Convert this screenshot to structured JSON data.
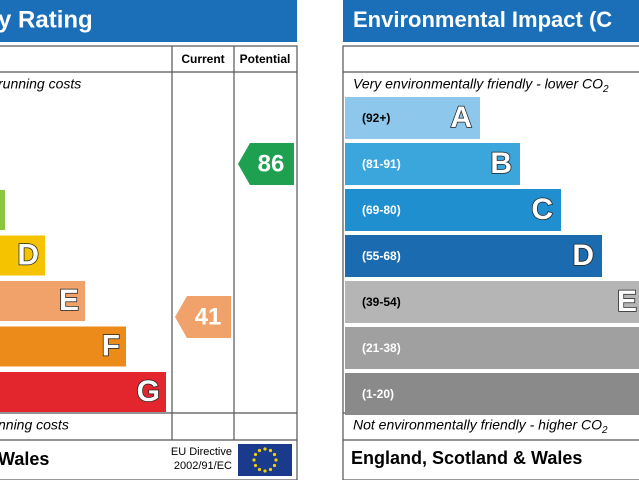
{
  "left": {
    "title": "y Rating",
    "col_current": "Current",
    "col_potential": "Potential",
    "top_note": "running costs",
    "bottom_note": "nning costs",
    "footer": "Wales",
    "eu_line1": "EU Directive",
    "eu_line2": "2002/91/EC",
    "bands": [
      {
        "letter": null
      },
      {
        "letter": "D"
      },
      {
        "letter": "E"
      },
      {
        "letter": "F"
      },
      {
        "letter": "G"
      }
    ],
    "current": 41,
    "potential": 86
  },
  "right": {
    "title": "Environmental Impact (C",
    "top_note": "Very environmentally friendly - lower CO",
    "top_note_sub": "2",
    "bottom_note": "Not environmentally friendly - higher CO",
    "bottom_note_sub": "2",
    "footer": "England, Scotland & Wales",
    "bands": [
      {
        "range": "(92+)",
        "letter": "A"
      },
      {
        "range": "(81-91)",
        "letter": "B"
      },
      {
        "range": "(69-80)",
        "letter": "C"
      },
      {
        "range": "(55-68)",
        "letter": "D"
      },
      {
        "range": "(39-54)",
        "letter": "E"
      },
      {
        "range": "(21-38)",
        "letter": null
      },
      {
        "range": "(1-20)",
        "letter": null
      }
    ]
  }
}
